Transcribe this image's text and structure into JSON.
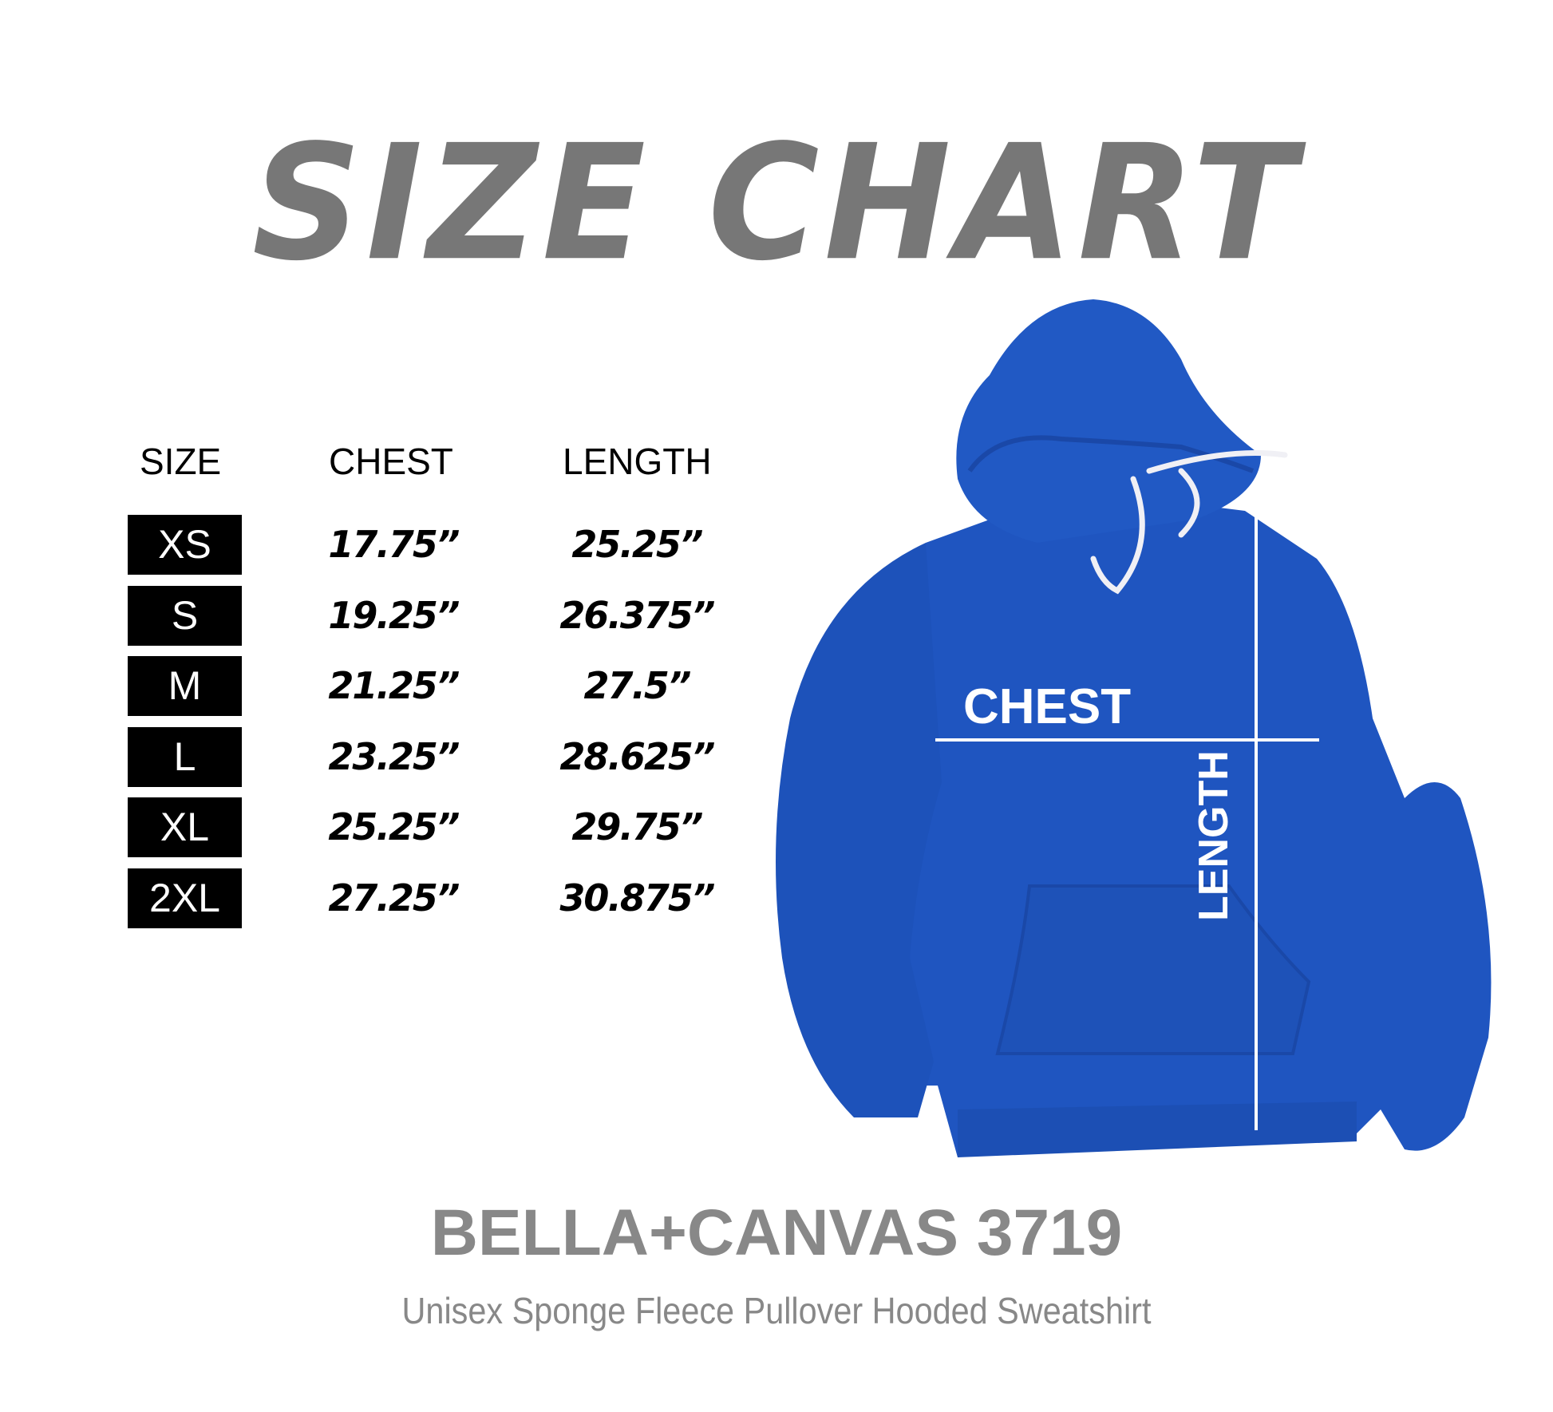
{
  "title": "SIZE CHART",
  "table": {
    "headers": {
      "size": "SIZE",
      "chest": "CHEST",
      "length": "LENGTH"
    },
    "rows": [
      {
        "size": "XS",
        "chest": "17.75”",
        "length": "25.25”"
      },
      {
        "size": "S",
        "chest": "19.25”",
        "length": "26.375”"
      },
      {
        "size": "M",
        "chest": "21.25”",
        "length": "27.5”"
      },
      {
        "size": "L",
        "chest": "23.25”",
        "length": "28.625”"
      },
      {
        "size": "XL",
        "chest": "25.25”",
        "length": "29.75”"
      },
      {
        "size": "2XL",
        "chest": "27.25”",
        "length": "30.875”"
      }
    ]
  },
  "diagram": {
    "chest_label": "CHEST",
    "length_label": "LENGTH",
    "garment_color": "#1f55c0"
  },
  "product": {
    "name": "BELLA+CANVAS 3719",
    "description": "Unisex Sponge Fleece Pullover Hooded Sweatshirt"
  },
  "colors": {
    "title": "#777777",
    "brand": "#888888",
    "size_box": "#000000"
  }
}
